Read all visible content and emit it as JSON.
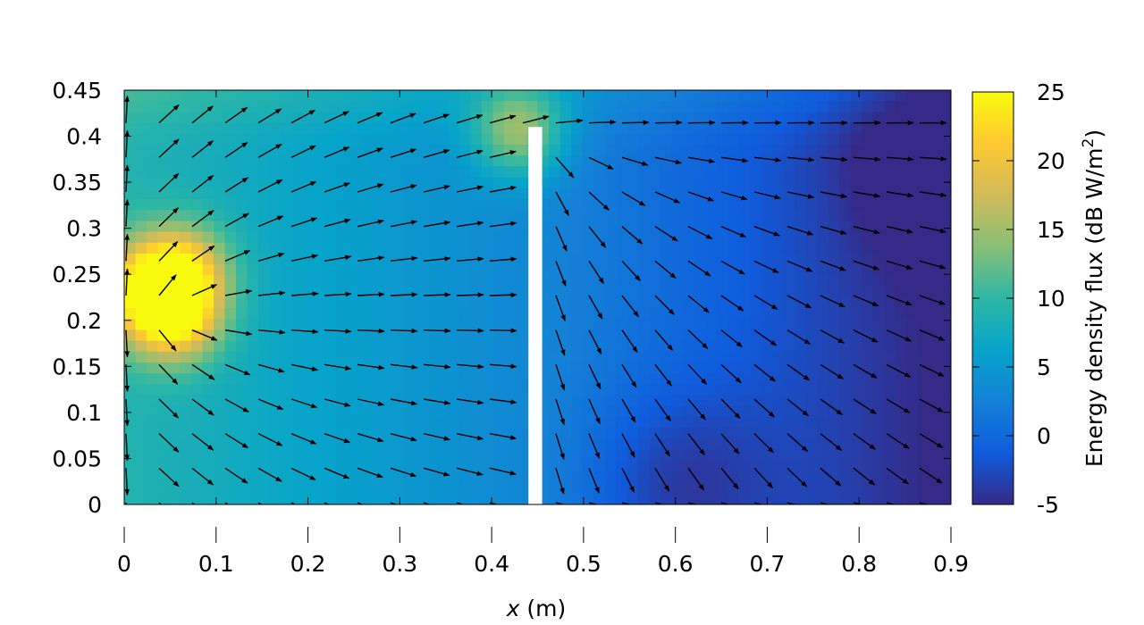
{
  "chart_data": {
    "type": "heatmap",
    "subtype": "vector-field",
    "title": "",
    "xlabel": {
      "var": "x",
      "unit": " (m)"
    },
    "ylabel": "",
    "xlim": [
      0,
      0.9
    ],
    "ylim": [
      0,
      0.45
    ],
    "x_ticks": [
      "0",
      "0.1",
      "0.2",
      "0.3",
      "0.4",
      "0.5",
      "0.6",
      "0.7",
      "0.8",
      "0.9"
    ],
    "y_ticks": [
      "0",
      "0.05",
      "0.1",
      "0.15",
      "0.2",
      "0.25",
      "0.3",
      "0.35",
      "0.4",
      "0.45"
    ],
    "colorbar": {
      "label": "Energy density flux (dB W/m²)",
      "label_main": "Energy density flux (dB W/m",
      "label_sup": "2",
      "label_end": ")",
      "range": [
        -5,
        25
      ],
      "ticks": [
        "25",
        "20",
        "15",
        "10",
        "5",
        "0",
        "-5"
      ],
      "colormap": "parula"
    },
    "barrier": {
      "x": [
        0.44,
        0.455
      ],
      "y": [
        0,
        0.41
      ],
      "color": "#ffffff"
    },
    "heat_peaks": [
      {
        "x": 0.055,
        "y": 0.205,
        "value": 23
      },
      {
        "x": 0.03,
        "y": 0.235,
        "value": 22
      },
      {
        "x": 0.065,
        "y": 0.255,
        "value": 19
      },
      {
        "x": 0.43,
        "y": 0.405,
        "value": 19
      }
    ],
    "low_regions": [
      {
        "x": 0.9,
        "y": 0.37,
        "value": -3
      },
      {
        "x": 0.6,
        "y": 0.02,
        "value": -2
      }
    ],
    "grid": false,
    "legend": "none"
  }
}
